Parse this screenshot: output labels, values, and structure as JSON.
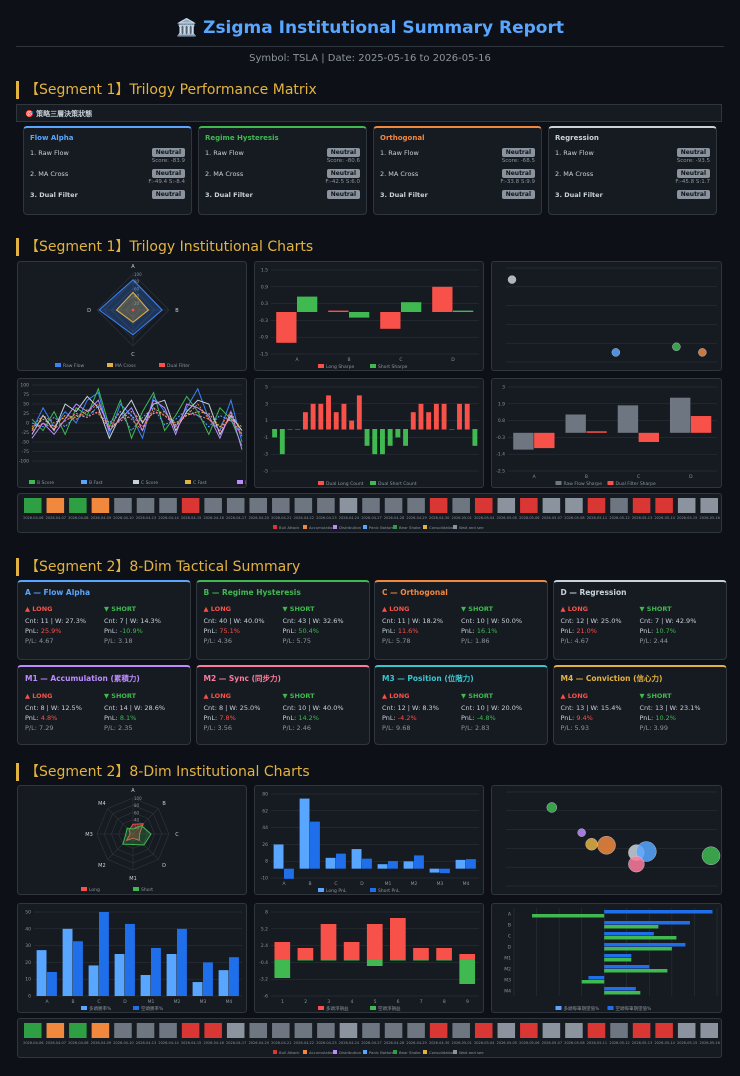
{
  "header": {
    "title": "🏛️ Zsigma Institutional Summary Report",
    "subtitle": "Symbol: TSLA | Date: 2025-05-16 to 2026-05-16"
  },
  "segments": {
    "s1a": "【Segment 1】Trilogy Performance Matrix",
    "s1b": "【Segment 1】Trilogy Institutional Charts",
    "s2a": "【Segment 2】8-Dim Tactical Summary",
    "s2b": "【Segment 2】8-Dim Institutional Charts"
  },
  "matrix_header": "🎯 策略三層決策狀態",
  "trilogy": [
    {
      "name": "Flow Alpha",
      "color": "#58a6ff",
      "r1": "1. Raw Flow",
      "b1": "Neutral",
      "s1": "Score: -83.9",
      "r2": "2. MA Cross",
      "b2": "Neutral",
      "s2": "F:-49.4 S:-8.4",
      "r3": "3. Dual Filter",
      "b3": "Neutral"
    },
    {
      "name": "Regime Hysteresis",
      "color": "#3fb950",
      "r1": "1. Raw Flow",
      "b1": "Neutral",
      "s1": "Score: -80.6",
      "r2": "2. MA Cross",
      "b2": "Neutral",
      "s2": "F:-42.5 S:6.0",
      "r3": "3. Dual Filter",
      "b3": "Neutral"
    },
    {
      "name": "Orthogonal",
      "color": "#f0883e",
      "r1": "1. Raw Flow",
      "b1": "Neutral",
      "s1": "Score: -68.5",
      "r2": "2. MA Cross",
      "b2": "Neutral",
      "s2": "F:-33.8 S:9.9",
      "r3": "3. Dual Filter",
      "b3": "Neutral"
    },
    {
      "name": "Regression",
      "color": "#c9d1d9",
      "r1": "1. Raw Flow",
      "b1": "Neutral",
      "s1": "Score: -93.5",
      "r2": "2. MA Cross",
      "b2": "Neutral",
      "s2": "F:-45.8 S:1.7",
      "r3": "3. Dual Filter",
      "b3": "Neutral"
    }
  ],
  "dims": [
    {
      "name": "A — Flow Alpha",
      "color": "#58a6ff",
      "lc": "Cnt: 11 | W: 27.3%",
      "lp": "25.9%",
      "lf": "P/L: 4.67",
      "sc": "Cnt: 7 | W: 14.3%",
      "sp": "-10.9%",
      "sf": "P/L: 3.18"
    },
    {
      "name": "B — Regime Hysteresis",
      "color": "#3fb950",
      "lc": "Cnt: 40 | W: 40.0%",
      "lp": "75.1%",
      "lf": "P/L: 4.36",
      "sc": "Cnt: 43 | W: 32.6%",
      "sp": "50.4%",
      "sf": "P/L: 5.75"
    },
    {
      "name": "C — Orthogonal",
      "color": "#f0883e",
      "lc": "Cnt: 11 | W: 18.2%",
      "lp": "11.6%",
      "lf": "P/L: 5.78",
      "sc": "Cnt: 10 | W: 50.0%",
      "sp": "16.1%",
      "sf": "P/L: 1.86"
    },
    {
      "name": "D — Regression",
      "color": "#c9d1d9",
      "lc": "Cnt: 12 | W: 25.0%",
      "lp": "21.0%",
      "lf": "P/L: 4.67",
      "sc": "Cnt: 7 | W: 42.9%",
      "sp": "10.7%",
      "sf": "P/L: 2.44"
    },
    {
      "name": "M1 — Accumulation (累積力)",
      "color": "#bc8cff",
      "lc": "Cnt: 8 | W: 12.5%",
      "lp": "4.8%",
      "lf": "P/L: 7.29",
      "sc": "Cnt: 14 | W: 28.6%",
      "sp": "8.1%",
      "sf": "P/L: 2.35"
    },
    {
      "name": "M2 — Sync (同步力)",
      "color": "#ff7b9c",
      "lc": "Cnt: 8 | W: 25.0%",
      "lp": "7.8%",
      "lf": "P/L: 3.56",
      "sc": "Cnt: 10 | W: 40.0%",
      "sp": "14.2%",
      "sf": "P/L: 2.46"
    },
    {
      "name": "M3 — Position (位階力)",
      "color": "#39c5cf",
      "lc": "Cnt: 12 | W: 8.3%",
      "lp": "-4.2%",
      "lf": "P/L: 9.68",
      "sc": "Cnt: 10 | W: 20.0%",
      "sp": "-4.8%",
      "sf": "P/L: 2.83"
    },
    {
      "name": "M4 — Conviction (信心力)",
      "color": "#e3b341",
      "lc": "Cnt: 13 | W: 15.4%",
      "lp": "9.4%",
      "lf": "P/L: 5.93",
      "sc": "Cnt: 13 | W: 23.1%",
      "sp": "10.2%",
      "sf": "P/L: 3.99"
    }
  ],
  "labels": {
    "long": "▲ LONG",
    "short": "▼ SHORT",
    "pnl": "PnL: "
  },
  "chart_data": [
    {
      "type": "radar",
      "axes": [
        "A",
        "B",
        "C",
        "D"
      ],
      "series": [
        {
          "name": "Raw Flow",
          "values": [
            84,
            81,
            69,
            94
          ]
        },
        {
          "name": "MA Cross",
          "values": [
            49,
            43,
            34,
            46
          ]
        },
        {
          "name": "Dual Filter",
          "values": [
            0,
            0,
            0,
            0
          ]
        }
      ],
      "ticks": [
        "100",
        "80",
        "60",
        "40",
        "20"
      ]
    },
    {
      "type": "bar",
      "categories": [
        "A",
        "B",
        "C",
        "D"
      ],
      "series": [
        {
          "name": "Long Sharpe",
          "values": [
            -1.1,
            0.05,
            -0.6,
            0.9
          ]
        },
        {
          "name": "Short Sharpe",
          "values": [
            0.55,
            -0.2,
            0.35,
            0.05
          ]
        }
      ],
      "ylim": [
        -1.5,
        1.5
      ]
    },
    {
      "type": "scatter",
      "points": [
        {
          "x": 9,
          "y": 14,
          "c": "#c9d1d9"
        },
        {
          "x": 21,
          "y": 1,
          "c": "#58a6ff"
        },
        {
          "x": 28,
          "y": 2,
          "c": "#3fb950"
        },
        {
          "x": 31,
          "y": 1,
          "c": "#f0883e"
        }
      ],
      "xlim": [
        9,
        32
      ],
      "ylim": [
        0,
        15
      ]
    },
    {
      "type": "line",
      "series": [
        {
          "name": "A Score",
          "values": [
            -20,
            40,
            -10,
            30,
            0,
            60,
            80,
            -30,
            50,
            20,
            -40,
            70,
            30,
            -10,
            40,
            90,
            10,
            -20,
            60,
            -50
          ]
        },
        {
          "name": "A Fast",
          "values": [
            -10,
            20,
            0,
            15,
            10,
            30,
            50,
            -10,
            30,
            10,
            -20,
            40,
            20,
            0,
            20,
            50,
            10,
            -10,
            30,
            -30
          ]
        },
        {
          "name": "B Score",
          "values": [
            10,
            -20,
            30,
            -30,
            40,
            20,
            90,
            -10,
            60,
            -40,
            30,
            80,
            -20,
            20,
            70,
            30,
            -30,
            40,
            10,
            -60
          ]
        },
        {
          "name": "B Fast",
          "values": [
            0,
            -10,
            15,
            -10,
            20,
            15,
            45,
            0,
            30,
            -20,
            15,
            40,
            -5,
            10,
            35,
            20,
            -10,
            20,
            5,
            -30
          ]
        },
        {
          "name": "C Score",
          "values": [
            -30,
            20,
            -20,
            50,
            30,
            70,
            40,
            -40,
            20,
            60,
            0,
            50,
            60,
            -20,
            30,
            60,
            50,
            -30,
            20,
            -20
          ]
        },
        {
          "name": "C Fast",
          "values": [
            -15,
            10,
            -10,
            20,
            15,
            35,
            25,
            -15,
            10,
            30,
            5,
            25,
            30,
            -5,
            20,
            30,
            25,
            -10,
            10,
            -10
          ]
        },
        {
          "name": "D Score",
          "values": [
            -40,
            0,
            -30,
            10,
            50,
            30,
            60,
            -20,
            10,
            40,
            -20,
            60,
            40,
            -30,
            50,
            40,
            20,
            -40,
            30,
            -70
          ]
        },
        {
          "name": "D Fast",
          "values": [
            -20,
            0,
            -15,
            5,
            25,
            15,
            30,
            -10,
            5,
            20,
            -10,
            30,
            20,
            -10,
            25,
            20,
            10,
            -20,
            15,
            -35
          ]
        }
      ],
      "ylim": [
        -100,
        100
      ]
    },
    {
      "type": "bar",
      "categories": [
        "1",
        "2",
        "3",
        "4",
        "5",
        "6",
        "7",
        "8",
        "9",
        "10",
        "11",
        "12",
        "13",
        "14",
        "15",
        "16",
        "17",
        "18",
        "19",
        "20",
        "21",
        "22",
        "23",
        "24",
        "25",
        "26",
        "27"
      ],
      "series": [
        {
          "name": "Dual Long Count",
          "values": [
            0,
            0,
            0,
            0,
            2,
            3,
            3,
            4,
            2,
            3,
            1,
            4,
            0,
            0,
            0,
            0,
            0,
            0,
            2,
            3,
            2,
            3,
            3,
            0,
            3,
            3,
            0
          ]
        },
        {
          "name": "Dual Short Count",
          "values": [
            -1,
            -3,
            0,
            0,
            0,
            0,
            0,
            0,
            0,
            0,
            0,
            0,
            -2,
            -3,
            -3,
            -2,
            -1,
            -2,
            0,
            0,
            0,
            0,
            0,
            0,
            0,
            0,
            -2
          ]
        }
      ],
      "ylim": [
        -5,
        5
      ]
    },
    {
      "type": "bar",
      "categories": [
        "A",
        "B",
        "C",
        "D"
      ],
      "series": [
        {
          "name": "Raw Flow Sharpe",
          "values": [
            -1.1,
            1.2,
            1.8,
            2.3
          ]
        },
        {
          "name": "Dual Filter Sharpe",
          "values": [
            -1.0,
            0.1,
            -0.6,
            1.1
          ]
        }
      ],
      "ylim": [
        -2.5,
        3
      ]
    },
    {
      "type": "heatmap",
      "legend": [
        "Bull Attack",
        "Accumulation",
        "Distribution",
        "Panic Bottom",
        "Bear Shake",
        "Consolidation",
        "Wait and see"
      ],
      "colors": [
        "#2ea043",
        "#f0883e",
        "#2ea043",
        "#f0883e",
        "#6e7681",
        "#6e7681",
        "#6e7681",
        "#da3633",
        "#6e7681",
        "#6e7681",
        "#6e7681",
        "#6e7681",
        "#6e7681",
        "#6e7681",
        "#8b949e",
        "#6e7681",
        "#6e7681",
        "#6e7681",
        "#da3633",
        "#6e7681",
        "#da3633",
        "#8b949e",
        "#da3633",
        "#8b949e",
        "#8b949e",
        "#da3633",
        "#6e7681",
        "#da3633",
        "#da3633",
        "#8b949e",
        "#8b949e"
      ],
      "dates": [
        "2026-04-06",
        "2026-04-07",
        "2026-04-08",
        "2026-04-09",
        "2026-04-10",
        "2026-04-13",
        "2026-04-14",
        "2026-04-15",
        "2026-04-16",
        "2026-04-17",
        "2026-04-20",
        "2026-04-21",
        "2026-04-22",
        "2026-04-23",
        "2026-04-24",
        "2026-04-27",
        "2026-04-28",
        "2026-04-29",
        "2026-04-30",
        "2026-05-01",
        "2026-05-04",
        "2026-05-05",
        "2026-05-06",
        "2026-05-07",
        "2026-05-08",
        "2026-05-11",
        "2026-05-12",
        "2026-05-13",
        "2026-05-14",
        "2026-05-15",
        "2026-05-16"
      ]
    },
    {
      "type": "radar",
      "axes": [
        "A",
        "B",
        "C",
        "D",
        "M1",
        "M2",
        "M3",
        "M4"
      ],
      "series": [
        {
          "name": "Long",
          "values": [
            27,
            40,
            18,
            25,
            12,
            25,
            8,
            15
          ]
        },
        {
          "name": "Short",
          "values": [
            14,
            33,
            50,
            43,
            29,
            40,
            20,
            23
          ]
        }
      ],
      "ticks": [
        "100",
        "80",
        "60",
        "40",
        "20"
      ]
    },
    {
      "type": "bar",
      "categories": [
        "A",
        "B",
        "C",
        "D",
        "M1",
        "M2",
        "M3",
        "M4"
      ],
      "series": [
        {
          "name": "Long PnL",
          "values": [
            25.9,
            75.1,
            11.6,
            21.0,
            4.8,
            7.8,
            -4.2,
            9.4
          ]
        },
        {
          "name": "Short PnL",
          "values": [
            -10.9,
            50.4,
            16.1,
            10.7,
            8.1,
            14.2,
            -4.8,
            10.2
          ]
        }
      ],
      "ylim": [
        -10,
        80
      ]
    },
    {
      "type": "scatter",
      "points": [
        {
          "x": 8,
          "y": 71,
          "c": "#3fb950"
        },
        {
          "x": 14,
          "y": 47,
          "c": "#bc8cff"
        },
        {
          "x": 16,
          "y": 36,
          "c": "#e3b341"
        },
        {
          "x": 19,
          "y": 35,
          "c": "#f0883e"
        },
        {
          "x": 25,
          "y": 28,
          "c": "#c9d1d9"
        },
        {
          "x": 27,
          "y": 29,
          "c": "#58a6ff"
        },
        {
          "x": 25,
          "y": 17,
          "c": "#ff7b9c"
        },
        {
          "x": 40,
          "y": 25,
          "c": "#3fb950"
        }
      ],
      "xlim": [
        0,
        40
      ],
      "ylim": [
        0,
        80
      ]
    },
    {
      "type": "bar",
      "categories": [
        "A",
        "B",
        "C",
        "D",
        "M1",
        "M2",
        "M3",
        "M4"
      ],
      "series": [
        {
          "name": "多頭勝率%",
          "values": [
            27.3,
            40.0,
            18.2,
            25.0,
            12.5,
            25.0,
            8.3,
            15.4
          ]
        },
        {
          "name": "空頭勝率%",
          "values": [
            14.3,
            32.6,
            50.0,
            42.9,
            28.6,
            40.0,
            20.0,
            23.1
          ]
        }
      ],
      "ylim": [
        0,
        50
      ]
    },
    {
      "type": "bar",
      "categories": [
        "1",
        "2",
        "3",
        "4",
        "5",
        "6",
        "7",
        "8",
        "9"
      ],
      "series": [
        {
          "name": "多頭淨損益",
          "values": [
            3,
            2,
            6,
            3,
            6,
            7,
            2,
            2,
            1
          ]
        },
        {
          "name": "空頭淨損益",
          "values": [
            -3,
            0,
            0,
            0,
            -1,
            0,
            0,
            0,
            -4
          ]
        }
      ],
      "ylim": [
        -6,
        8
      ]
    },
    {
      "type": "hbar",
      "categories": [
        "A",
        "B",
        "C",
        "D",
        "M1",
        "M2",
        "M3",
        "M4"
      ],
      "series": [
        {
          "name": "多頭每筆期望值%",
          "values": [
            2.4,
            1.9,
            1.1,
            1.8,
            0.6,
            1.0,
            -0.35,
            0.7
          ]
        },
        {
          "name": "空頭每筆期望值%",
          "values": [
            -1.6,
            1.2,
            1.6,
            1.5,
            0.6,
            1.4,
            -0.5,
            0.8
          ]
        }
      ],
      "xlim": [
        -2,
        2.5
      ]
    },
    {
      "type": "heatmap",
      "legend": [
        "Bull Attack",
        "Accumulation",
        "Distribution",
        "Panic Bottom",
        "Bear Shake",
        "Consolidation",
        "Wait and see"
      ],
      "colors": [
        "#2ea043",
        "#f0883e",
        "#2ea043",
        "#f0883e",
        "#6e7681",
        "#6e7681",
        "#6e7681",
        "#da3633",
        "#da3633",
        "#8b949e",
        "#6e7681",
        "#6e7681",
        "#6e7681",
        "#6e7681",
        "#8b949e",
        "#6e7681",
        "#6e7681",
        "#6e7681",
        "#da3633",
        "#6e7681",
        "#da3633",
        "#8b949e",
        "#da3633",
        "#8b949e",
        "#8b949e",
        "#da3633",
        "#6e7681",
        "#da3633",
        "#da3633",
        "#8b949e",
        "#8b949e"
      ],
      "dates": [
        "2026-04-06",
        "2026-04-07",
        "2026-04-08",
        "2026-04-09",
        "2026-04-10",
        "2026-04-13",
        "2026-04-14",
        "2026-04-15",
        "2026-04-16",
        "2026-04-17",
        "2026-04-20",
        "2026-04-21",
        "2026-04-22",
        "2026-04-23",
        "2026-04-24",
        "2026-04-27",
        "2026-04-28",
        "2026-04-29",
        "2026-04-30",
        "2026-05-01",
        "2026-05-04",
        "2026-05-05",
        "2026-05-06",
        "2026-05-07",
        "2026-05-08",
        "2026-05-11",
        "2026-05-12",
        "2026-05-13",
        "2026-05-14",
        "2026-05-15",
        "2026-05-16"
      ]
    }
  ]
}
